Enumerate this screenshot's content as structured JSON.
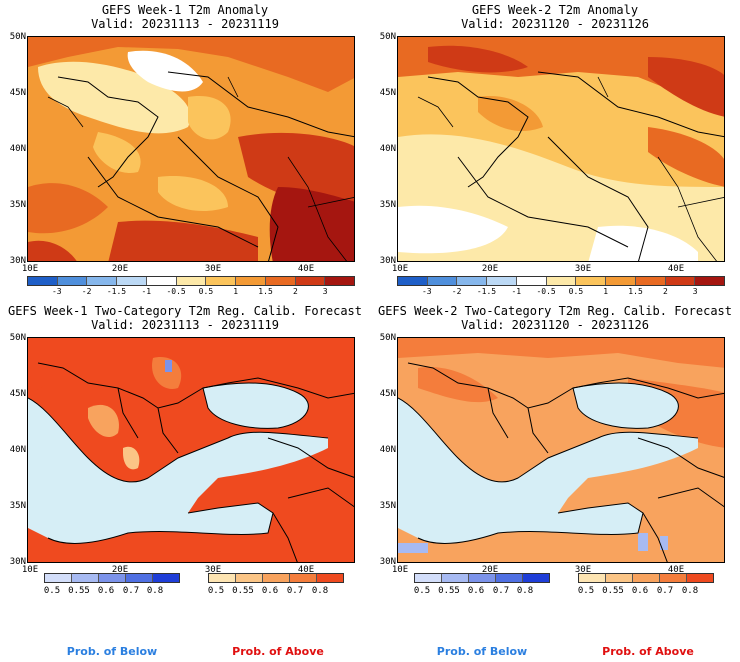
{
  "panels": [
    {
      "title1": "GEFS Week-1 T2m Anomaly",
      "title2": "Valid: 20231113 - 20231119",
      "lat_labels": [
        "50N",
        "45N",
        "40N",
        "35N",
        "30N"
      ],
      "lon_labels": [
        "10E",
        "20E",
        "30E",
        "40E"
      ],
      "colorbar_labels": [
        "-3",
        "-2",
        "-1.5",
        "-1",
        "-0.5",
        "0.5",
        "1",
        "1.5",
        "2",
        "3"
      ],
      "colorbar_colors": [
        "#1f5fc8",
        "#4f8fdc",
        "#86b7ec",
        "#bcd9f5",
        "#ffffff",
        "#fde9a9",
        "#fbc45c",
        "#f39a35",
        "#e86a22",
        "#cf3a16",
        "#a51610"
      ]
    },
    {
      "title1": "GEFS Week-2 T2m Anomaly",
      "title2": "Valid: 20231120 - 20231126",
      "lat_labels": [
        "50N",
        "45N",
        "40N",
        "35N",
        "30N"
      ],
      "lon_labels": [
        "10E",
        "20E",
        "30E",
        "40E"
      ],
      "colorbar_labels": [
        "-3",
        "-2",
        "-1.5",
        "-1",
        "-0.5",
        "0.5",
        "1",
        "1.5",
        "2",
        "3"
      ],
      "colorbar_colors": [
        "#1f5fc8",
        "#4f8fdc",
        "#86b7ec",
        "#bcd9f5",
        "#ffffff",
        "#fde9a9",
        "#fbc45c",
        "#f39a35",
        "#e86a22",
        "#cf3a16",
        "#a51610"
      ]
    },
    {
      "title1": "GEFS Week-1 Two-Category T2m Reg. Calib. Forecast",
      "title2": "Valid: 20231113 - 20231119",
      "lat_labels": [
        "50N",
        "45N",
        "40N",
        "35N",
        "30N"
      ],
      "lon_labels": [
        "10E",
        "20E",
        "30E",
        "40E"
      ]
    },
    {
      "title1": "GEFS Week-2 Two-Category T2m Reg. Calib. Forecast",
      "title2": "Valid: 20231120 - 20231126",
      "lat_labels": [
        "50N",
        "45N",
        "40N",
        "35N",
        "30N"
      ],
      "lon_labels": [
        "10E",
        "20E",
        "30E",
        "40E"
      ]
    }
  ],
  "prob_bar": {
    "below_labels": [
      "0.5",
      "0.55",
      "0.6",
      "0.7",
      "0.8"
    ],
    "below_colors": [
      "#d3defa",
      "#a7baf2",
      "#7c93ea",
      "#4f6fe2",
      "#1f3ed8"
    ],
    "above_labels": [
      "0.5",
      "0.55",
      "0.6",
      "0.7",
      "0.8"
    ],
    "above_colors": [
      "#fde4b2",
      "#fbc586",
      "#f8a35e",
      "#f47d3c",
      "#ef4a1f"
    ]
  },
  "legend": {
    "below": "Prob. of Below",
    "above": "Prob. of Above",
    "below_color": "#2b7fe0",
    "above_color": "#e01010"
  }
}
